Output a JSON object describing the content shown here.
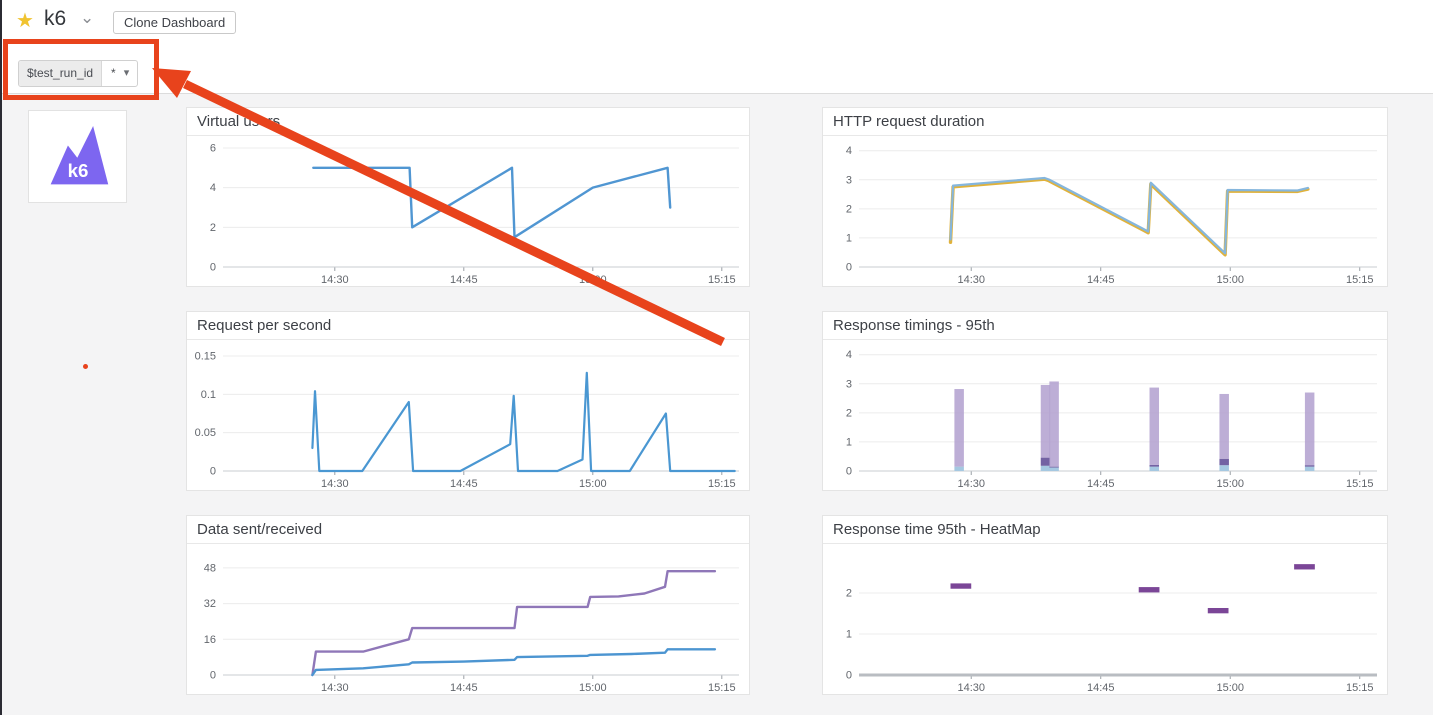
{
  "header": {
    "star_icon": "★",
    "title": "k6",
    "chevron_icon": "⌄",
    "clone_button_label": "Clone Dashboard"
  },
  "variable_bar": {
    "name_label": "$test_run_id",
    "value": "*",
    "caret_icon": "▾"
  },
  "logo": {
    "text": "k6"
  },
  "colors": {
    "annotation": "#e8431c",
    "star": "#f0c330",
    "logo": "#7d66f0",
    "page_bg": "#f4f4f5",
    "panel_border": "#e4e4e4",
    "divider": "#dcdcdc",
    "edge": "#2b2b33"
  },
  "chart_data": [
    {
      "id": "virtual_users",
      "title": "Virtual users",
      "type": "line",
      "x": {
        "domain": [
          17,
          77
        ],
        "ticks": [
          30,
          45,
          60,
          75
        ],
        "tick_labels": [
          "14:30",
          "14:45",
          "15:00",
          "15:15"
        ]
      },
      "y": {
        "domain": [
          0,
          6.3
        ],
        "ticks": [
          0,
          2,
          4,
          6
        ],
        "tick_labels": [
          "0",
          "2",
          "4",
          "6"
        ]
      },
      "series": [
        {
          "color": "#5096d2",
          "width": 2.4,
          "points": [
            [
              27.5,
              5
            ],
            [
              38.7,
              5
            ],
            [
              39,
              2
            ],
            [
              50.6,
              5
            ],
            [
              50.9,
              1.5
            ],
            [
              60,
              4
            ],
            [
              68.7,
              5
            ],
            [
              69,
              3
            ]
          ]
        }
      ]
    },
    {
      "id": "http_request_duration",
      "title": "HTTP request duration",
      "type": "line",
      "x": {
        "domain": [
          17,
          77
        ],
        "ticks": [
          30,
          45,
          60,
          75
        ],
        "tick_labels": [
          "14:30",
          "14:45",
          "15:00",
          "15:15"
        ]
      },
      "y": {
        "domain": [
          0,
          4.3
        ],
        "ticks": [
          0,
          1,
          2,
          3,
          4
        ],
        "tick_labels": [
          "0",
          "1",
          "2",
          "3",
          "4"
        ]
      },
      "series": [
        {
          "color": "#e0b23b",
          "width": 3.4,
          "points": [
            [
              27.6,
              0.85
            ],
            [
              27.9,
              2.76
            ],
            [
              38.5,
              3.02
            ],
            [
              39,
              2.97
            ],
            [
              50.5,
              1.18
            ],
            [
              50.8,
              2.85
            ],
            [
              59.4,
              0.42
            ],
            [
              59.7,
              2.61
            ],
            [
              67.8,
              2.6
            ],
            [
              69,
              2.68
            ]
          ]
        },
        {
          "color": "#85b6dd",
          "width": 2.2,
          "points": [
            [
              27.6,
              0.95
            ],
            [
              27.9,
              2.8
            ],
            [
              38.5,
              3.06
            ],
            [
              39,
              3.01
            ],
            [
              50.5,
              1.22
            ],
            [
              50.8,
              2.9
            ],
            [
              59.4,
              0.47
            ],
            [
              59.7,
              2.65
            ],
            [
              67.8,
              2.63
            ],
            [
              69,
              2.72
            ]
          ]
        }
      ]
    },
    {
      "id": "requests_per_second",
      "title": "Request per second",
      "type": "line",
      "x": {
        "domain": [
          17,
          77
        ],
        "ticks": [
          30,
          45,
          60,
          75
        ],
        "tick_labels": [
          "14:30",
          "14:45",
          "15:00",
          "15:15"
        ]
      },
      "y": {
        "domain": [
          0,
          0.163
        ],
        "ticks": [
          0,
          0.05,
          0.1,
          0.15
        ],
        "tick_labels": [
          "0",
          "0.05",
          "0.1",
          "0.15"
        ]
      },
      "series": [
        {
          "color": "#4a97d2",
          "width": 2.2,
          "points": [
            [
              27.4,
              0.03
            ],
            [
              27.7,
              0.104
            ],
            [
              28.2,
              0
            ],
            [
              33.2,
              0
            ],
            [
              38.6,
              0.09
            ],
            [
              39.1,
              0
            ],
            [
              44.6,
              0
            ],
            [
              50.4,
              0.035
            ],
            [
              50.8,
              0.098
            ],
            [
              51.3,
              0
            ],
            [
              55.9,
              0
            ],
            [
              58.8,
              0.015
            ],
            [
              59.3,
              0.128
            ],
            [
              59.8,
              0
            ],
            [
              64.3,
              0
            ],
            [
              68.5,
              0.075
            ],
            [
              69,
              0
            ],
            [
              76.5,
              0
            ]
          ]
        }
      ]
    },
    {
      "id": "response_timings_95th",
      "title": "Response timings - 95th",
      "type": "stacked_bars",
      "x": {
        "domain": [
          17,
          77
        ],
        "ticks": [
          30,
          45,
          60,
          75
        ],
        "tick_labels": [
          "14:30",
          "14:45",
          "15:00",
          "15:15"
        ]
      },
      "y": {
        "domain": [
          0,
          4.3
        ],
        "ticks": [
          0,
          1,
          2,
          3,
          4
        ],
        "tick_labels": [
          "0",
          "1",
          "2",
          "3",
          "4"
        ]
      },
      "bars": {
        "x": [
          28.6,
          38.6,
          39.6,
          51.2,
          59.3,
          69.2
        ],
        "width_min": 1.1,
        "segments": [
          {
            "color": "#a5c8e1",
            "opacity": 1,
            "values": [
              0.15,
              0.18,
              0.12,
              0.15,
              0.2,
              0.15
            ]
          },
          {
            "color": "#6c5a9e",
            "opacity": 0.95,
            "values": [
              0,
              0.28,
              0.03,
              0.06,
              0.22,
              0.05
            ]
          },
          {
            "color": "#b2a0cf",
            "opacity": 0.85,
            "values": [
              2.67,
              2.5,
              2.93,
              2.66,
              2.23,
              2.5
            ]
          }
        ]
      }
    },
    {
      "id": "data_sent_received",
      "title": "Data sent/received",
      "type": "line",
      "x": {
        "domain": [
          17,
          77
        ],
        "ticks": [
          30,
          45,
          60,
          75
        ],
        "tick_labels": [
          "14:30",
          "14:45",
          "15:00",
          "15:15"
        ]
      },
      "y": {
        "domain": [
          0,
          56
        ],
        "ticks": [
          0,
          16,
          32,
          48
        ],
        "tick_labels": [
          "0",
          "16",
          "32",
          "48"
        ]
      },
      "series": [
        {
          "color": "#8f77b8",
          "width": 2.4,
          "points": [
            [
              27.4,
              0
            ],
            [
              27.8,
              10.5
            ],
            [
              33.3,
              10.5
            ],
            [
              38.6,
              16
            ],
            [
              39,
              21
            ],
            [
              50.9,
              21
            ],
            [
              51.2,
              30.5
            ],
            [
              59.4,
              30.5
            ],
            [
              59.7,
              35
            ],
            [
              63,
              35.2
            ],
            [
              66,
              36.5
            ],
            [
              68.4,
              39.5
            ],
            [
              68.7,
              46.5
            ],
            [
              74.2,
              46.5
            ]
          ]
        },
        {
          "color": "#4c95d1",
          "width": 2.4,
          "points": [
            [
              27.4,
              0
            ],
            [
              27.8,
              2.3
            ],
            [
              33.3,
              3
            ],
            [
              38.6,
              4.8
            ],
            [
              39,
              5.6
            ],
            [
              45,
              6
            ],
            [
              50.9,
              6.8
            ],
            [
              51.2,
              8
            ],
            [
              59.4,
              8.6
            ],
            [
              59.7,
              9
            ],
            [
              64.5,
              9.4
            ],
            [
              68.4,
              10
            ],
            [
              68.7,
              11.5
            ],
            [
              74.2,
              11.5
            ]
          ]
        }
      ]
    },
    {
      "id": "response_time_95th_heatmap",
      "title": "Response time 95th - HeatMap",
      "type": "heatmap_dashes",
      "x": {
        "domain": [
          17,
          77
        ],
        "ticks": [
          30,
          45,
          60,
          75
        ],
        "tick_labels": [
          "14:30",
          "14:45",
          "15:00",
          "15:15"
        ]
      },
      "y": {
        "domain": [
          0,
          3.05
        ],
        "ticks": [
          0,
          1,
          2
        ],
        "tick_labels": [
          "0",
          "1",
          "2"
        ]
      },
      "axis_color": "#b9bdc2",
      "axis_width": 3,
      "cell": {
        "w_min": 2.4,
        "h_units": 0.13,
        "color": "#7b4697"
      },
      "cells": [
        [
          28.8,
          2.17
        ],
        [
          50.6,
          2.08
        ],
        [
          58.6,
          1.57
        ],
        [
          68.6,
          2.64
        ]
      ]
    }
  ]
}
